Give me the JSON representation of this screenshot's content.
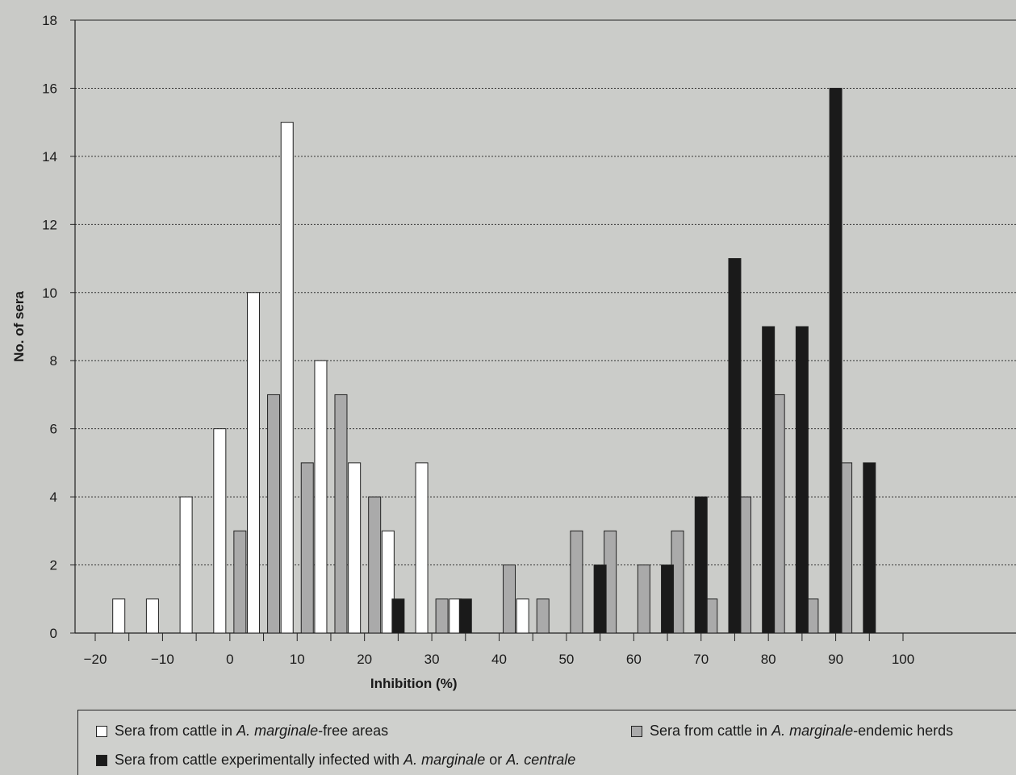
{
  "chart_data": {
    "type": "bar",
    "xlabel": "Inhibition (%)",
    "ylabel": "No. of sera",
    "xlim": [
      -25,
      105
    ],
    "ylim": [
      0,
      18
    ],
    "xticks": [
      "−20",
      "−10",
      "0",
      "10",
      "20",
      "30",
      "40",
      "50",
      "60",
      "70",
      "80",
      "90",
      "100"
    ],
    "yticks": [
      "0",
      "2",
      "4",
      "6",
      "8",
      "10",
      "12",
      "14",
      "16",
      "18"
    ],
    "grid": "horizontal dotted",
    "legend_position": "bottom",
    "series": [
      {
        "name": "Sera from cattle in A. marginale-free areas",
        "color": "#ffffff",
        "points": [
          {
            "x": -16.5,
            "y": 1
          },
          {
            "x": -11.5,
            "y": 1
          },
          {
            "x": -6.5,
            "y": 4
          },
          {
            "x": -1.5,
            "y": 6
          },
          {
            "x": 3.5,
            "y": 10
          },
          {
            "x": 8.5,
            "y": 15
          },
          {
            "x": 13.5,
            "y": 8
          },
          {
            "x": 18.5,
            "y": 5
          },
          {
            "x": 23.5,
            "y": 3
          },
          {
            "x": 28.5,
            "y": 5
          },
          {
            "x": 33.5,
            "y": 1
          },
          {
            "x": 43.5,
            "y": 1
          }
        ]
      },
      {
        "name": "Sera from cattle in A. marginale-endemic herds",
        "color": "#aaaaaa",
        "points": [
          {
            "x": 1.5,
            "y": 3
          },
          {
            "x": 6.5,
            "y": 7
          },
          {
            "x": 11.5,
            "y": 5
          },
          {
            "x": 16.5,
            "y": 7
          },
          {
            "x": 21.5,
            "y": 4
          },
          {
            "x": 31.5,
            "y": 1
          },
          {
            "x": 41.5,
            "y": 2
          },
          {
            "x": 46.5,
            "y": 1
          },
          {
            "x": 51.5,
            "y": 3
          },
          {
            "x": 56.5,
            "y": 3
          },
          {
            "x": 61.5,
            "y": 2
          },
          {
            "x": 66.5,
            "y": 3
          },
          {
            "x": 71.5,
            "y": 1
          },
          {
            "x": 76.5,
            "y": 4
          },
          {
            "x": 81.5,
            "y": 7
          },
          {
            "x": 86.5,
            "y": 1
          },
          {
            "x": 91.5,
            "y": 5
          }
        ]
      },
      {
        "name": "Sera from cattle experimentally infected with A. marginale or A. centrale",
        "color": "#1a1a1a",
        "points": [
          {
            "x": 25,
            "y": 1
          },
          {
            "x": 35,
            "y": 1
          },
          {
            "x": 55,
            "y": 2
          },
          {
            "x": 65,
            "y": 2
          },
          {
            "x": 70,
            "y": 4
          },
          {
            "x": 75,
            "y": 11
          },
          {
            "x": 80,
            "y": 9
          },
          {
            "x": 85,
            "y": 9
          },
          {
            "x": 90,
            "y": 16
          },
          {
            "x": 95,
            "y": 5
          }
        ]
      }
    ]
  },
  "legend": {
    "free_pre": "Sera from cattle in ",
    "free_italic": "A. marginale",
    "free_post": "-free areas",
    "endemic_pre": "Sera from cattle in ",
    "endemic_italic": "A. marginale",
    "endemic_post": "-endemic herds",
    "infected_pre": "Sera from cattle experimentally infected with ",
    "infected_italic_1": "A. marginale",
    "infected_mid": " or ",
    "infected_italic_2": "A. centrale"
  }
}
